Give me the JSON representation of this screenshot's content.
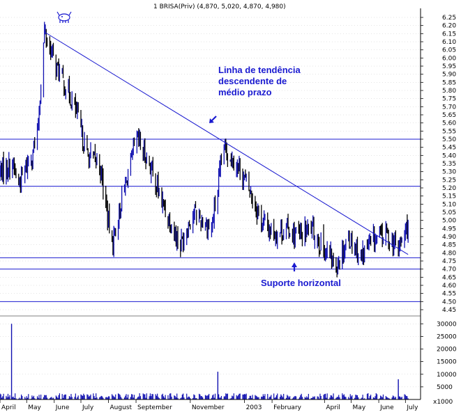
{
  "chart_data": [
    {
      "type": "candlestick",
      "title": "1 BRISA(Priv) (4,870, 5,020, 4,870, 4,980)",
      "ylim": [
        4.42,
        6.28
      ],
      "yticks": [
        "6.25",
        "6.20",
        "6.15",
        "6.10",
        "6.05",
        "6.00",
        "5.95",
        "5.90",
        "5.85",
        "5.80",
        "5.75",
        "5.70",
        "5.65",
        "5.60",
        "5.55",
        "5.50",
        "5.45",
        "5.40",
        "5.35",
        "5.30",
        "5.25",
        "5.20",
        "5.15",
        "5.10",
        "5.05",
        "5.00",
        "4.95",
        "4.90",
        "4.85",
        "4.80",
        "4.75",
        "4.70",
        "4.65",
        "4.60",
        "4.55",
        "4.50",
        "4.45"
      ],
      "horizontal_lines": [
        5.5,
        5.21,
        4.77,
        4.7,
        4.5
      ],
      "trendline": {
        "from": [
          "2002-05-21",
          6.16
        ],
        "to": [
          "2003-07-04",
          4.79
        ]
      },
      "price_path": [
        [
          "2002-04-01",
          5.3
        ],
        [
          "2002-04-15",
          5.35
        ],
        [
          "2002-04-22",
          5.22
        ],
        [
          "2002-05-06",
          5.4
        ],
        [
          "2002-05-13",
          5.52
        ],
        [
          "2002-05-21",
          6.16
        ],
        [
          "2002-06-03",
          5.95
        ],
        [
          "2002-06-24",
          5.7
        ],
        [
          "2002-07-08",
          5.4
        ],
        [
          "2002-07-22",
          5.35
        ],
        [
          "2002-08-05",
          4.85
        ],
        [
          "2002-08-19",
          5.2
        ],
        [
          "2002-09-02",
          5.5
        ],
        [
          "2002-09-16",
          5.35
        ],
        [
          "2002-10-01",
          5.1
        ],
        [
          "2002-10-21",
          4.85
        ],
        [
          "2002-11-04",
          5.05
        ],
        [
          "2002-11-25",
          4.95
        ],
        [
          "2002-12-09",
          5.45
        ],
        [
          "2002-12-23",
          5.35
        ],
        [
          "2003-01-06",
          5.2
        ],
        [
          "2003-01-20",
          5.0
        ],
        [
          "2003-02-03",
          4.92
        ],
        [
          "2003-02-17",
          4.95
        ],
        [
          "2003-03-03",
          4.9
        ],
        [
          "2003-03-17",
          4.95
        ],
        [
          "2003-04-01",
          4.82
        ],
        [
          "2003-04-14",
          4.72
        ],
        [
          "2003-04-28",
          4.9
        ],
        [
          "2003-05-12",
          4.78
        ],
        [
          "2003-05-26",
          4.88
        ],
        [
          "2003-06-09",
          4.92
        ],
        [
          "2003-06-23",
          4.82
        ],
        [
          "2003-07-04",
          4.98
        ]
      ],
      "annotations": [
        {
          "text_lines": [
            "Linha de tendência",
            "descendente de",
            "médio prazo"
          ],
          "arrow": "down-left"
        },
        {
          "text_lines": [
            "Suporte horizontal"
          ],
          "arrow": "up"
        }
      ]
    },
    {
      "type": "bar",
      "ylim": [
        0,
        32000
      ],
      "yticks": [
        "30000",
        "25000",
        "20000",
        "15000",
        "10000",
        "5000"
      ],
      "unit_label": "x1000",
      "spikes": [
        [
          "2002-04-14",
          30000
        ],
        [
          "2002-12-02",
          11000
        ],
        [
          "2003-06-23",
          8000
        ]
      ]
    }
  ],
  "x_axis": {
    "months": [
      {
        "label": "April",
        "date": "2002-04-01"
      },
      {
        "label": "May",
        "date": "2002-05-01"
      },
      {
        "label": "June",
        "date": "2002-06-01"
      },
      {
        "label": "July",
        "date": "2002-07-01"
      },
      {
        "label": "August",
        "date": "2002-08-01"
      },
      {
        "label": "September",
        "date": "2002-09-01"
      },
      {
        "label": "November",
        "date": "2002-11-01"
      },
      {
        "label": "2003",
        "date": "2003-01-01"
      },
      {
        "label": "February",
        "date": "2003-02-01"
      },
      {
        "label": "April",
        "date": "2003-04-01"
      },
      {
        "label": "May",
        "date": "2003-05-01"
      },
      {
        "label": "June",
        "date": "2003-06-01"
      },
      {
        "label": "July",
        "date": "2003-07-01"
      }
    ],
    "range": [
      "2002-04-01",
      "2003-07-18"
    ]
  },
  "colors": {
    "bull": "#1010b0",
    "bear": "#000000",
    "lines": "#1a1ad0",
    "annotation": "#1a1ad0",
    "grid": "#c8c8c8"
  }
}
